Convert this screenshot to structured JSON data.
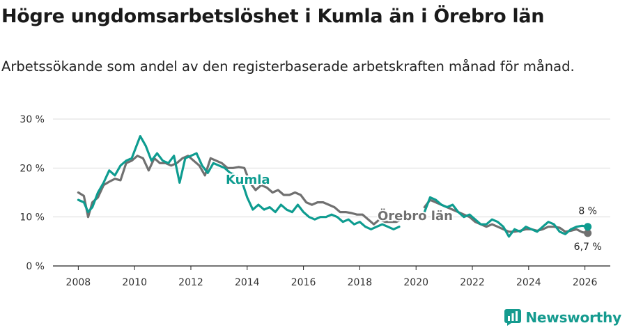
{
  "title": "Högre ungdomsarbetslöshet i Kumla än i Örebro län",
  "subtitle": "Arbetssökande som andel av den registerbaserade arbetskraften månad för månad.",
  "brand": {
    "name": "Newsworthy",
    "icon": "bar-chart-icon",
    "color": "#159b8f"
  },
  "chart_data": {
    "type": "line",
    "xlim": [
      2007.1,
      2026.9
    ],
    "ylim": [
      0,
      30
    ],
    "x_ticks": [
      2008,
      2010,
      2012,
      2014,
      2016,
      2018,
      2020,
      2022,
      2024,
      2026
    ],
    "x_tick_labels": [
      "2008",
      "2010",
      "2012",
      "2014",
      "2016",
      "2018",
      "2020",
      "2022",
      "2024",
      "2026"
    ],
    "y_ticks": [
      0,
      10,
      20,
      30
    ],
    "y_tick_labels": [
      "0 %",
      "10 %",
      "20 %",
      "30 %"
    ],
    "grid": true,
    "series": [
      {
        "name": "Örebro län",
        "color": "#707070",
        "end_label": "6,7 %",
        "points": [
          [
            2008.0,
            15.0
          ],
          [
            2008.2,
            14.3
          ],
          [
            2008.35,
            10.0
          ],
          [
            2008.5,
            13.0
          ],
          [
            2008.7,
            14.0
          ],
          [
            2008.9,
            16.5
          ],
          [
            2009.1,
            17.2
          ],
          [
            2009.3,
            17.8
          ],
          [
            2009.5,
            17.5
          ],
          [
            2009.7,
            21.0
          ],
          [
            2009.9,
            21.5
          ],
          [
            2010.1,
            22.5
          ],
          [
            2010.3,
            22.0
          ],
          [
            2010.5,
            19.5
          ],
          [
            2010.7,
            22.0
          ],
          [
            2010.9,
            21.0
          ],
          [
            2011.1,
            21.0
          ],
          [
            2011.3,
            20.5
          ],
          [
            2011.5,
            21.0
          ],
          [
            2011.7,
            22.0
          ],
          [
            2011.9,
            22.5
          ],
          [
            2012.1,
            21.5
          ],
          [
            2012.3,
            20.5
          ],
          [
            2012.5,
            18.5
          ],
          [
            2012.7,
            22.0
          ],
          [
            2012.9,
            21.5
          ],
          [
            2013.1,
            21.0
          ],
          [
            2013.3,
            20.0
          ],
          [
            2013.5,
            20.0
          ],
          [
            2013.7,
            20.2
          ],
          [
            2013.9,
            20.0
          ],
          [
            2014.1,
            17.0
          ],
          [
            2014.3,
            15.5
          ],
          [
            2014.5,
            16.5
          ],
          [
            2014.7,
            16.0
          ],
          [
            2014.9,
            15.0
          ],
          [
            2015.1,
            15.5
          ],
          [
            2015.3,
            14.5
          ],
          [
            2015.5,
            14.5
          ],
          [
            2015.7,
            15.0
          ],
          [
            2015.9,
            14.5
          ],
          [
            2016.1,
            13.0
          ],
          [
            2016.3,
            12.5
          ],
          [
            2016.5,
            13.0
          ],
          [
            2016.7,
            13.0
          ],
          [
            2016.9,
            12.5
          ],
          [
            2017.1,
            12.0
          ],
          [
            2017.3,
            11.0
          ],
          [
            2017.5,
            11.0
          ],
          [
            2017.7,
            10.8
          ],
          [
            2017.9,
            10.5
          ],
          [
            2018.1,
            10.5
          ],
          [
            2018.3,
            9.5
          ],
          [
            2018.5,
            8.5
          ],
          [
            2018.7,
            9.5
          ],
          [
            2018.9,
            9.0
          ],
          [
            2019.1,
            9.0
          ],
          [
            2019.3,
            9.0
          ],
          [
            2019.5,
            9.5
          ],
          [
            2020.3,
            12.0
          ],
          [
            2020.5,
            13.5
          ],
          [
            2020.7,
            13.0
          ],
          [
            2020.9,
            12.5
          ],
          [
            2021.1,
            12.0
          ],
          [
            2021.3,
            11.5
          ],
          [
            2021.5,
            11.0
          ],
          [
            2021.7,
            10.5
          ],
          [
            2021.9,
            10.0
          ],
          [
            2022.1,
            9.0
          ],
          [
            2022.3,
            8.5
          ],
          [
            2022.5,
            8.0
          ],
          [
            2022.7,
            8.5
          ],
          [
            2022.9,
            8.0
          ],
          [
            2023.1,
            7.5
          ],
          [
            2023.3,
            7.0
          ],
          [
            2023.5,
            7.0
          ],
          [
            2023.7,
            7.2
          ],
          [
            2023.9,
            7.5
          ],
          [
            2024.1,
            7.5
          ],
          [
            2024.3,
            7.2
          ],
          [
            2024.5,
            7.5
          ],
          [
            2024.7,
            8.0
          ],
          [
            2024.9,
            8.0
          ],
          [
            2025.1,
            7.8
          ],
          [
            2025.3,
            7.0
          ],
          [
            2025.5,
            7.2
          ],
          [
            2025.7,
            7.5
          ],
          [
            2025.9,
            6.9
          ],
          [
            2026.1,
            6.7
          ]
        ]
      },
      {
        "name": "Kumla",
        "color": "#0e9c90",
        "end_label": "8 %",
        "points": [
          [
            2008.0,
            13.5
          ],
          [
            2008.2,
            13.0
          ],
          [
            2008.35,
            11.0
          ],
          [
            2008.5,
            12.0
          ],
          [
            2008.7,
            15.0
          ],
          [
            2008.9,
            17.0
          ],
          [
            2009.1,
            19.5
          ],
          [
            2009.3,
            18.5
          ],
          [
            2009.5,
            20.5
          ],
          [
            2009.7,
            21.5
          ],
          [
            2009.9,
            22.0
          ],
          [
            2010.1,
            25.0
          ],
          [
            2010.2,
            26.5
          ],
          [
            2010.4,
            24.5
          ],
          [
            2010.6,
            21.5
          ],
          [
            2010.8,
            23.0
          ],
          [
            2011.0,
            21.5
          ],
          [
            2011.2,
            21.0
          ],
          [
            2011.4,
            22.5
          ],
          [
            2011.6,
            17.0
          ],
          [
            2011.8,
            22.0
          ],
          [
            2012.0,
            22.5
          ],
          [
            2012.2,
            23.0
          ],
          [
            2012.4,
            20.5
          ],
          [
            2012.6,
            19.0
          ],
          [
            2012.8,
            21.0
          ],
          [
            2013.0,
            20.5
          ],
          [
            2013.2,
            20.0
          ],
          [
            2013.4,
            19.0
          ],
          [
            2013.6,
            18.5
          ],
          [
            2013.8,
            17.5
          ],
          [
            2014.0,
            14.0
          ],
          [
            2014.2,
            11.5
          ],
          [
            2014.4,
            12.5
          ],
          [
            2014.6,
            11.5
          ],
          [
            2014.8,
            12.0
          ],
          [
            2015.0,
            11.0
          ],
          [
            2015.2,
            12.5
          ],
          [
            2015.4,
            11.5
          ],
          [
            2015.6,
            11.0
          ],
          [
            2015.8,
            12.5
          ],
          [
            2016.0,
            11.0
          ],
          [
            2016.2,
            10.0
          ],
          [
            2016.4,
            9.5
          ],
          [
            2016.6,
            10.0
          ],
          [
            2016.8,
            10.0
          ],
          [
            2017.0,
            10.5
          ],
          [
            2017.2,
            10.0
          ],
          [
            2017.4,
            9.0
          ],
          [
            2017.6,
            9.5
          ],
          [
            2017.8,
            8.5
          ],
          [
            2018.0,
            9.0
          ],
          [
            2018.2,
            8.0
          ],
          [
            2018.4,
            7.5
          ],
          [
            2018.6,
            8.0
          ],
          [
            2018.8,
            8.5
          ],
          [
            2019.0,
            8.0
          ],
          [
            2019.2,
            7.5
          ],
          [
            2019.4,
            8.0
          ],
          [
            2020.3,
            11.0
          ],
          [
            2020.5,
            14.0
          ],
          [
            2020.7,
            13.5
          ],
          [
            2020.9,
            12.5
          ],
          [
            2021.1,
            12.0
          ],
          [
            2021.3,
            12.5
          ],
          [
            2021.5,
            11.0
          ],
          [
            2021.7,
            10.0
          ],
          [
            2021.9,
            10.5
          ],
          [
            2022.1,
            9.5
          ],
          [
            2022.3,
            8.5
          ],
          [
            2022.5,
            8.5
          ],
          [
            2022.7,
            9.5
          ],
          [
            2022.9,
            9.0
          ],
          [
            2023.1,
            8.0
          ],
          [
            2023.3,
            6.0
          ],
          [
            2023.5,
            7.5
          ],
          [
            2023.7,
            7.0
          ],
          [
            2023.9,
            8.0
          ],
          [
            2024.1,
            7.5
          ],
          [
            2024.3,
            7.0
          ],
          [
            2024.5,
            8.0
          ],
          [
            2024.7,
            9.0
          ],
          [
            2024.9,
            8.5
          ],
          [
            2025.1,
            7.0
          ],
          [
            2025.3,
            6.5
          ],
          [
            2025.5,
            7.5
          ],
          [
            2025.7,
            8.0
          ],
          [
            2025.9,
            8.2
          ],
          [
            2026.1,
            8.0
          ]
        ]
      }
    ]
  }
}
